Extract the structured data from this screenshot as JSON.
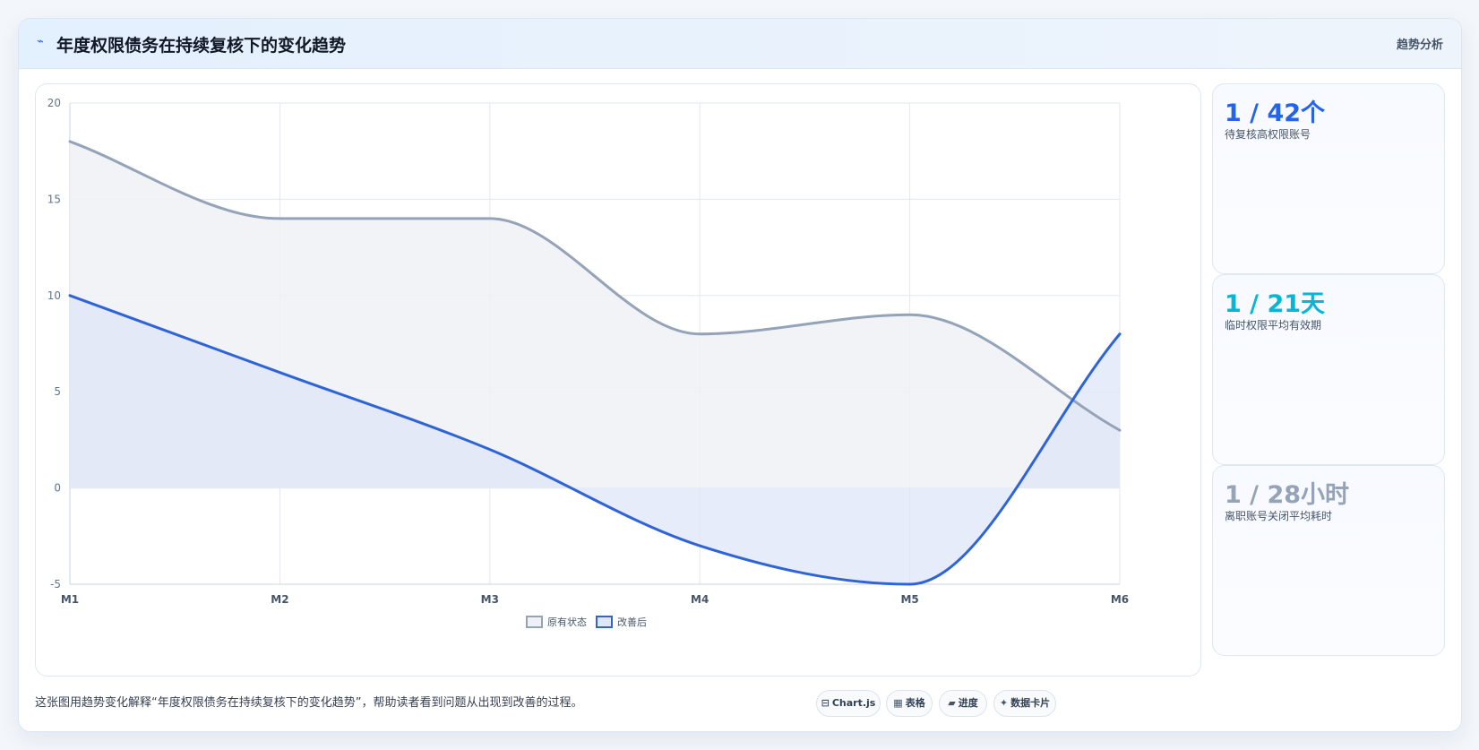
{
  "header": {
    "icon": "trend-line-icon",
    "title": "年度权限债务在持续复核下的变化趋势",
    "badge": "趋势分析"
  },
  "chart_data": {
    "type": "line",
    "categories": [
      "M1",
      "M2",
      "M3",
      "M4",
      "M5",
      "M6"
    ],
    "ylim": [
      -5,
      20
    ],
    "yticks": [
      -5,
      0,
      5,
      10,
      15,
      20
    ],
    "grid": true,
    "legend_position": "bottom",
    "series": [
      {
        "name": "原有状态",
        "values": [
          18,
          14,
          14,
          8,
          9,
          3
        ],
        "color": "#94a3b8",
        "fill": "#eef1f6"
      },
      {
        "name": "改善后",
        "values": [
          10,
          6,
          2,
          -3,
          -5,
          8
        ],
        "color": "#2f64d6",
        "fill": "#dfe6f8"
      }
    ]
  },
  "stats": [
    {
      "value": "1 / 42个",
      "label": "待复核高权限账号",
      "color": "#2563eb"
    },
    {
      "value": "1 / 21天",
      "label": "临时权限平均有效期",
      "color": "#06b6d4"
    },
    {
      "value": "1 / 28小时",
      "label": "离职账号关闭平均耗时",
      "color": "#94a3b8"
    }
  ],
  "footer": {
    "text": "这张图用趋势变化解释“年度权限债务在持续复核下的变化趋势”，帮助读者看到问题从出现到改善的过程。",
    "chips": [
      {
        "icon": "chart-icon",
        "label": "Chart.js"
      },
      {
        "icon": "table-icon",
        "label": "表格"
      },
      {
        "icon": "progress-icon",
        "label": "进度"
      },
      {
        "icon": "card-icon",
        "label": "数据卡片"
      }
    ]
  }
}
